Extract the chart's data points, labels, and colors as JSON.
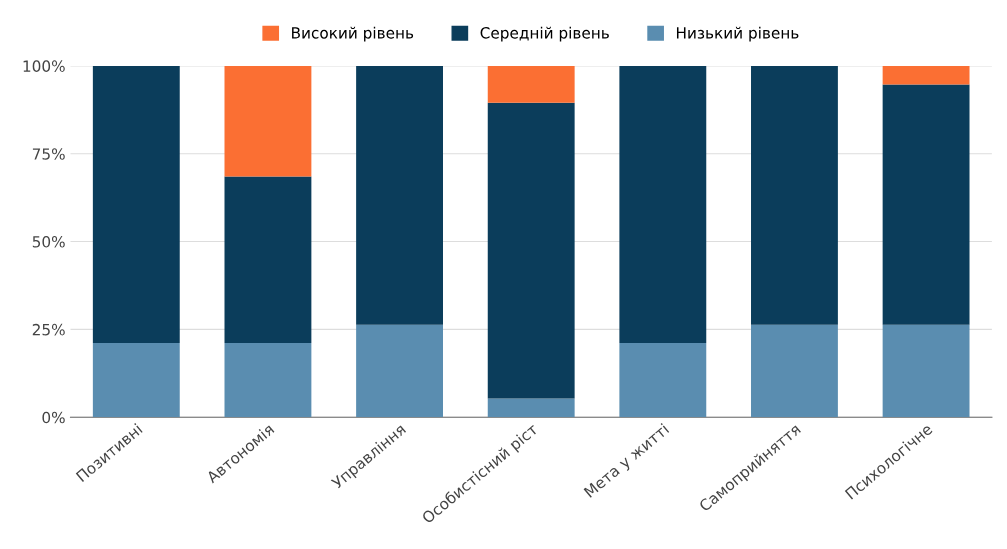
{
  "chart_data": {
    "type": "bar",
    "stacked": true,
    "categories": [
      "Позитивні",
      "Автономія",
      "Управління",
      "Особистісний ріст",
      "Мета у житті",
      "Самоприйняття",
      "Психологічне"
    ],
    "series": [
      {
        "name": "Низький рівень",
        "color": "#5a8db0",
        "values": [
          21.1,
          21.1,
          26.3,
          5.3,
          21.1,
          26.3,
          26.3
        ]
      },
      {
        "name": "Середній рівень",
        "color": "#0b3d5b",
        "values": [
          78.9,
          47.4,
          73.7,
          84.2,
          78.9,
          73.7,
          68.4
        ]
      },
      {
        "name": "Високий рівень",
        "color": "#fb6f33",
        "values": [
          0,
          31.5,
          0,
          10.5,
          0,
          0,
          5.3
        ]
      }
    ],
    "ylim": [
      0,
      100
    ],
    "yticks": [
      {
        "value": 0,
        "label": "0%"
      },
      {
        "value": 25,
        "label": "25%"
      },
      {
        "value": 50,
        "label": "50%"
      },
      {
        "value": 75,
        "label": "75%"
      },
      {
        "value": 100,
        "label": "100%"
      }
    ],
    "grid": "y",
    "legend": "top"
  }
}
